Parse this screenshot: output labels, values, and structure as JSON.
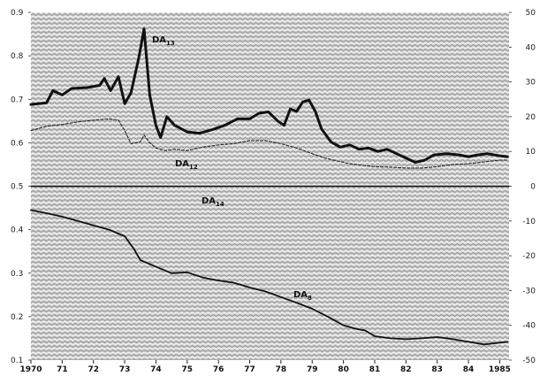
{
  "chart_data": {
    "type": "line",
    "title": "",
    "xlabel": "",
    "ylabel": "",
    "xlim": [
      1970,
      1985.3
    ],
    "ylim_left": [
      0.1,
      0.9
    ],
    "ylim_right": [
      -50,
      50
    ],
    "x_ticks": [
      {
        "x": 1970,
        "label": "1970"
      },
      {
        "x": 1971,
        "label": "71"
      },
      {
        "x": 1972,
        "label": "72"
      },
      {
        "x": 1973,
        "label": "73"
      },
      {
        "x": 1974,
        "label": "74"
      },
      {
        "x": 1975,
        "label": "75"
      },
      {
        "x": 1976,
        "label": "76"
      },
      {
        "x": 1977,
        "label": "77"
      },
      {
        "x": 1978,
        "label": "78"
      },
      {
        "x": 1979,
        "label": "79"
      },
      {
        "x": 1980,
        "label": "80"
      },
      {
        "x": 1981,
        "label": "81"
      },
      {
        "x": 1982,
        "label": "82"
      },
      {
        "x": 1983,
        "label": "83"
      },
      {
        "x": 1984,
        "label": "84"
      },
      {
        "x": 1985,
        "label": "1985"
      }
    ],
    "y_ticks_left": [
      {
        "v": 0.9,
        "label": "0.9"
      },
      {
        "v": 0.8,
        "label": "0.8"
      },
      {
        "v": 0.7,
        "label": "0.7"
      },
      {
        "v": 0.6,
        "label": "0.6"
      },
      {
        "v": 0.5,
        "label": "0.5"
      },
      {
        "v": 0.4,
        "label": "0.4"
      },
      {
        "v": 0.3,
        "label": "0.3"
      },
      {
        "v": 0.2,
        "label": "0.2"
      },
      {
        "v": 0.1,
        "label": "0.1"
      }
    ],
    "y_ticks_right": [
      {
        "v": 50,
        "label": "50"
      },
      {
        "v": 40,
        "label": "40"
      },
      {
        "v": 30,
        "label": "30"
      },
      {
        "v": 20,
        "label": "20"
      },
      {
        "v": 10,
        "label": "10"
      },
      {
        "v": 0,
        "label": "0"
      },
      {
        "v": -10,
        "label": "-10"
      },
      {
        "v": -20,
        "label": "-20"
      },
      {
        "v": -30,
        "label": "-30"
      },
      {
        "v": -40,
        "label": "-40"
      },
      {
        "v": -50,
        "label": "-50"
      }
    ],
    "grid": false,
    "series": [
      {
        "name": "DA",
        "sub": "13",
        "style": "solid-thick",
        "color": "#111111",
        "points": [
          [
            1970.0,
            0.688
          ],
          [
            1970.5,
            0.692
          ],
          [
            1970.7,
            0.72
          ],
          [
            1971.0,
            0.71
          ],
          [
            1971.3,
            0.725
          ],
          [
            1971.8,
            0.727
          ],
          [
            1972.2,
            0.732
          ],
          [
            1972.35,
            0.748
          ],
          [
            1972.55,
            0.72
          ],
          [
            1972.8,
            0.752
          ],
          [
            1973.0,
            0.69
          ],
          [
            1973.2,
            0.715
          ],
          [
            1973.45,
            0.795
          ],
          [
            1973.62,
            0.862
          ],
          [
            1973.8,
            0.71
          ],
          [
            1974.0,
            0.64
          ],
          [
            1974.15,
            0.612
          ],
          [
            1974.35,
            0.66
          ],
          [
            1974.6,
            0.64
          ],
          [
            1975.0,
            0.625
          ],
          [
            1975.4,
            0.622
          ],
          [
            1975.8,
            0.63
          ],
          [
            1976.2,
            0.64
          ],
          [
            1976.6,
            0.655
          ],
          [
            1977.0,
            0.655
          ],
          [
            1977.3,
            0.668
          ],
          [
            1977.6,
            0.671
          ],
          [
            1977.9,
            0.65
          ],
          [
            1978.1,
            0.64
          ],
          [
            1978.3,
            0.678
          ],
          [
            1978.5,
            0.672
          ],
          [
            1978.7,
            0.694
          ],
          [
            1978.9,
            0.698
          ],
          [
            1979.1,
            0.672
          ],
          [
            1979.3,
            0.632
          ],
          [
            1979.6,
            0.602
          ],
          [
            1979.9,
            0.59
          ],
          [
            1980.2,
            0.595
          ],
          [
            1980.5,
            0.585
          ],
          [
            1980.8,
            0.588
          ],
          [
            1981.1,
            0.58
          ],
          [
            1981.4,
            0.585
          ],
          [
            1981.7,
            0.575
          ],
          [
            1982.0,
            0.565
          ],
          [
            1982.3,
            0.555
          ],
          [
            1982.6,
            0.56
          ],
          [
            1982.9,
            0.572
          ],
          [
            1983.3,
            0.575
          ],
          [
            1983.7,
            0.572
          ],
          [
            1984.0,
            0.568
          ],
          [
            1984.3,
            0.572
          ],
          [
            1984.6,
            0.575
          ],
          [
            1985.0,
            0.57
          ],
          [
            1985.25,
            0.568
          ]
        ]
      },
      {
        "name": "DA",
        "sub": "12",
        "style": "dashed",
        "color": "#222222",
        "points": [
          [
            1970.0,
            0.628
          ],
          [
            1970.5,
            0.638
          ],
          [
            1971.0,
            0.642
          ],
          [
            1971.5,
            0.648
          ],
          [
            1972.0,
            0.652
          ],
          [
            1972.5,
            0.655
          ],
          [
            1972.8,
            0.652
          ],
          [
            1973.0,
            0.628
          ],
          [
            1973.2,
            0.598
          ],
          [
            1973.5,
            0.602
          ],
          [
            1973.62,
            0.618
          ],
          [
            1973.8,
            0.6
          ],
          [
            1974.0,
            0.588
          ],
          [
            1974.3,
            0.582
          ],
          [
            1974.6,
            0.585
          ],
          [
            1975.0,
            0.582
          ],
          [
            1975.5,
            0.59
          ],
          [
            1976.0,
            0.595
          ],
          [
            1976.5,
            0.598
          ],
          [
            1977.0,
            0.605
          ],
          [
            1977.5,
            0.605
          ],
          [
            1978.0,
            0.598
          ],
          [
            1978.5,
            0.588
          ],
          [
            1979.0,
            0.575
          ],
          [
            1979.4,
            0.565
          ],
          [
            1979.8,
            0.558
          ],
          [
            1980.2,
            0.552
          ],
          [
            1980.6,
            0.548
          ],
          [
            1981.0,
            0.545
          ],
          [
            1981.5,
            0.544
          ],
          [
            1982.0,
            0.542
          ],
          [
            1982.5,
            0.542
          ],
          [
            1983.0,
            0.545
          ],
          [
            1983.5,
            0.55
          ],
          [
            1984.0,
            0.552
          ],
          [
            1984.5,
            0.556
          ],
          [
            1985.0,
            0.56
          ],
          [
            1985.25,
            0.56
          ]
        ]
      },
      {
        "name": "DA",
        "sub": "14",
        "style": "solid-thin",
        "color": "#111111",
        "points": [
          [
            1970.0,
            0.5
          ],
          [
            1985.3,
            0.5
          ]
        ]
      },
      {
        "name": "DA",
        "sub": "8",
        "style": "solid-medium",
        "color": "#111111",
        "points": [
          [
            1970.0,
            0.445
          ],
          [
            1970.5,
            0.438
          ],
          [
            1971.0,
            0.43
          ],
          [
            1971.5,
            0.42
          ],
          [
            1972.0,
            0.41
          ],
          [
            1972.5,
            0.4
          ],
          [
            1973.0,
            0.385
          ],
          [
            1973.3,
            0.355
          ],
          [
            1973.5,
            0.33
          ],
          [
            1974.0,
            0.315
          ],
          [
            1974.5,
            0.3
          ],
          [
            1975.0,
            0.302
          ],
          [
            1975.5,
            0.29
          ],
          [
            1976.0,
            0.283
          ],
          [
            1976.5,
            0.278
          ],
          [
            1977.0,
            0.267
          ],
          [
            1977.5,
            0.258
          ],
          [
            1978.0,
            0.245
          ],
          [
            1978.5,
            0.232
          ],
          [
            1979.0,
            0.218
          ],
          [
            1979.5,
            0.2
          ],
          [
            1980.0,
            0.18
          ],
          [
            1980.4,
            0.172
          ],
          [
            1980.7,
            0.168
          ],
          [
            1981.0,
            0.155
          ],
          [
            1981.5,
            0.15
          ],
          [
            1982.0,
            0.148
          ],
          [
            1982.5,
            0.15
          ],
          [
            1983.0,
            0.153
          ],
          [
            1983.5,
            0.148
          ],
          [
            1984.0,
            0.142
          ],
          [
            1984.5,
            0.136
          ],
          [
            1985.0,
            0.14
          ],
          [
            1985.25,
            0.142
          ]
        ]
      }
    ]
  }
}
